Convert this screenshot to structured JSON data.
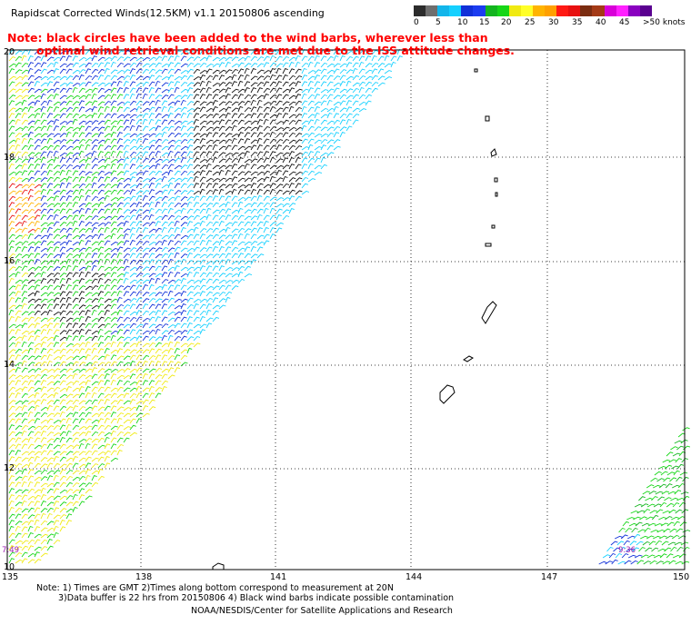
{
  "header": {
    "title": "Rapidscat Corrected Winds(12.5KM) v1.1 20150806 ascending"
  },
  "note": {
    "line1": "Note: black circles have been added to the wind barbs, wherever less than",
    "line2": "optimal wind retrieval conditions are met due to the ISS attitude changes."
  },
  "legend": {
    "labels": [
      "0",
      "5",
      "10",
      "15",
      "20",
      "25",
      "30",
      "35",
      "40",
      "45",
      ">50 knots"
    ],
    "colors": [
      "#2c2c2c",
      "#6e6e6e",
      "#12b5ea",
      "#14d0ff",
      "#1030d8",
      "#1b3cf0",
      "#13b41f",
      "#16d617",
      "#f0ea12",
      "#ffff28",
      "#ffb400",
      "#ffa000",
      "#ff1a14",
      "#e81010",
      "#7a2c10",
      "#a43a16",
      "#d800d8",
      "#ff20ff",
      "#8a00c0",
      "#5a0090"
    ]
  },
  "axes": {
    "lat_labels": [
      "20",
      "18",
      "16",
      "14",
      "12",
      "10"
    ],
    "lon_labels": [
      "135",
      "138",
      "141",
      "144",
      "147",
      "150"
    ]
  },
  "time_stamps": {
    "left": "7:49",
    "right": "9:36"
  },
  "footer": {
    "line1": "Note: 1) Times are GMT 2)Times along bottom correspond to measurement at 20N",
    "line2": "3)Data buffer is 22 hrs from 20150806 4) Black wind barbs indicate possible contamination",
    "line3": "NOAA/NESDIS/Center for Satellite Applications and Research"
  }
}
